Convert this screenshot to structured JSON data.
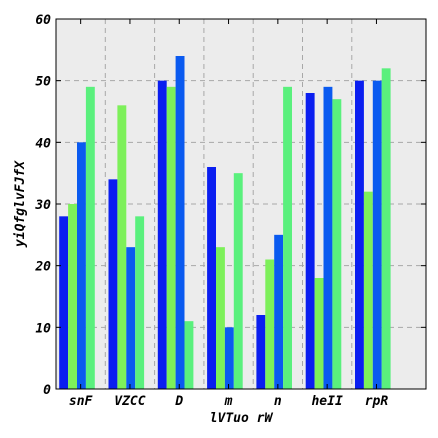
{
  "chart_data": {
    "type": "bar",
    "xlabel": "lVTuo rW",
    "ylabel": "yiQfglvFJfX",
    "categories": [
      "snF",
      "VZCC",
      "D",
      "m",
      "n",
      "heII",
      "rpR"
    ],
    "ylim": [
      0,
      60
    ],
    "yticks": [
      0,
      10,
      20,
      30,
      40,
      50,
      60
    ],
    "grid": true,
    "series": [
      {
        "color": "#0a1ef0",
        "values": [
          28,
          34,
          50,
          36,
          12,
          48,
          50
        ]
      },
      {
        "color": "#7df05a",
        "values": [
          30,
          46,
          49,
          23,
          21,
          18,
          32
        ]
      },
      {
        "color": "#0a5af0",
        "values": [
          40,
          23,
          54,
          10,
          25,
          49,
          50
        ]
      },
      {
        "color": "#5af07d",
        "values": [
          49,
          28,
          11,
          35,
          49,
          47,
          52
        ]
      }
    ]
  }
}
